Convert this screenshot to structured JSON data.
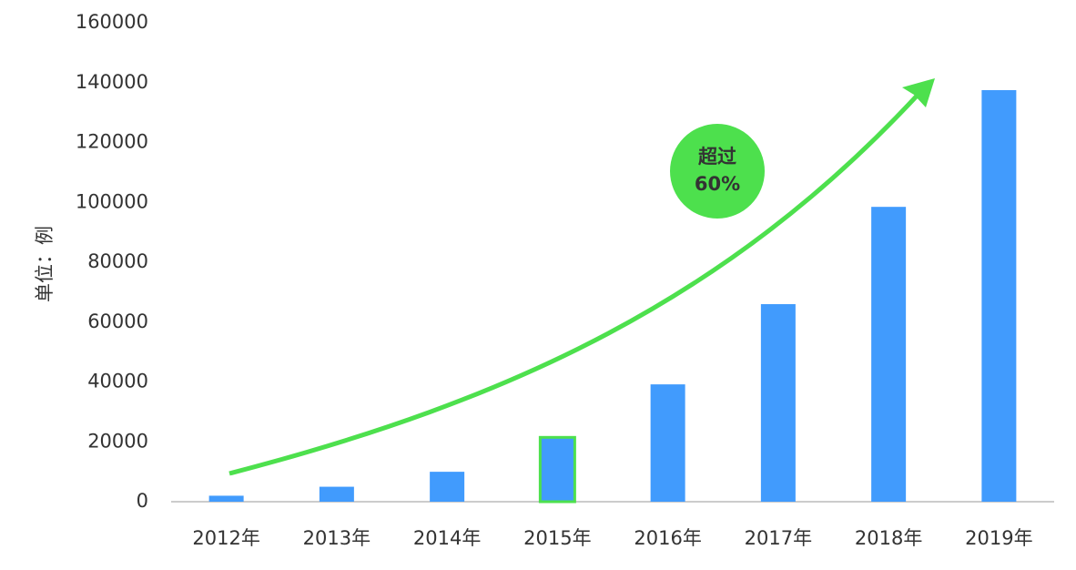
{
  "chart_data": {
    "type": "bar",
    "y_axis_label": "单位：例",
    "categories": [
      "2012年",
      "2013年",
      "2014年",
      "2015年",
      "2016年",
      "2017年",
      "2018年",
      "2019年"
    ],
    "values": [
      2000,
      5000,
      10000,
      21500,
      39200,
      66000,
      98500,
      137500
    ],
    "color": "#419bfd",
    "highlight": {
      "category": "2015年",
      "color": "#4de04d"
    },
    "annotation_lines": [
      "超过",
      "60%"
    ],
    "annotation_color": "#4de04d",
    "ylim": [
      0,
      160000
    ],
    "yticks": [
      0,
      20000,
      40000,
      60000,
      80000,
      100000,
      120000,
      140000,
      160000
    ],
    "grid": false
  }
}
